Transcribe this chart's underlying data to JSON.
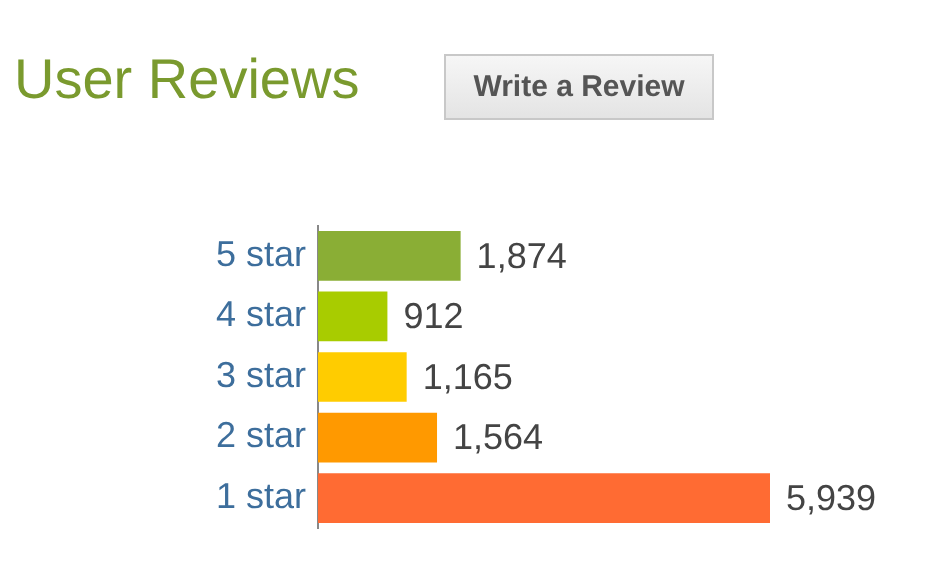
{
  "chart_data": {
    "type": "bar",
    "orientation": "horizontal",
    "title": "User Reviews",
    "annotations": [
      "Write a Review"
    ],
    "categories": [
      "5 star",
      "4 star",
      "3 star",
      "2 star",
      "1 star"
    ],
    "values": [
      1874,
      912,
      1165,
      1564,
      5939
    ],
    "colors": [
      "#8aae35",
      "#a8cc00",
      "#ffcc00",
      "#ff9900",
      "#ff6b33"
    ],
    "value_labels": [
      "1,874",
      "912",
      "1,165",
      "1,564",
      "5,939"
    ],
    "legend": false
  }
}
